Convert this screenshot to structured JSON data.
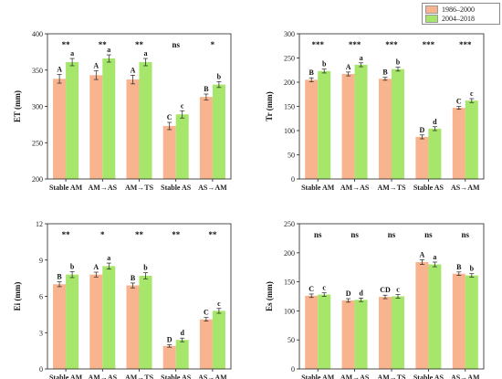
{
  "legend": {
    "items": [
      {
        "label": "1986–2000",
        "color": "#f8b48e"
      },
      {
        "label": "2004–2018",
        "color": "#a6e66a"
      }
    ]
  },
  "chart_data": [
    {
      "type": "bar",
      "title": "",
      "ylabel": "ET (mm)",
      "xlabel": "",
      "ylim": [
        200,
        400
      ],
      "yticks": [
        200,
        250,
        300,
        350,
        400
      ],
      "categories": [
        "Stable AM",
        "AM→AS",
        "AM→TS",
        "Stable AS",
        "AS→AM"
      ],
      "series": [
        {
          "name": "1986–2000",
          "values": [
            338,
            343,
            337,
            273,
            313
          ],
          "errors": [
            6,
            6,
            6,
            5,
            4
          ],
          "letters": [
            "A",
            "A",
            "A",
            "C",
            "B"
          ]
        },
        {
          "name": "2004–2018",
          "values": [
            361,
            366,
            361,
            289,
            330
          ],
          "errors": [
            5,
            5,
            5,
            5,
            4
          ],
          "letters": [
            "a",
            "a",
            "a",
            "c",
            "b"
          ]
        }
      ],
      "significance": [
        "**",
        "**",
        "**",
        "ns",
        "*"
      ]
    },
    {
      "type": "bar",
      "title": "",
      "ylabel": "Tr (mm)",
      "xlabel": "",
      "ylim": [
        0,
        300
      ],
      "yticks": [
        0,
        50,
        100,
        150,
        200,
        250,
        300
      ],
      "categories": [
        "Stable AM",
        "AM→AS",
        "AM→TS",
        "Stable AS",
        "AS→AM"
      ],
      "series": [
        {
          "name": "1986–2000",
          "values": [
            205,
            217,
            207,
            87,
            147
          ],
          "errors": [
            4,
            4,
            3,
            4,
            3
          ],
          "letters": [
            "B",
            "A",
            "B",
            "D",
            "C"
          ]
        },
        {
          "name": "2004–2018",
          "values": [
            223,
            236,
            227,
            104,
            162
          ],
          "errors": [
            4,
            4,
            4,
            4,
            4
          ],
          "letters": [
            "b",
            "a",
            "b",
            "d",
            "c"
          ]
        }
      ],
      "significance": [
        "***",
        "***",
        "***",
        "***",
        "***"
      ]
    },
    {
      "type": "bar",
      "title": "",
      "ylabel": "Ei (mm)",
      "xlabel": "",
      "ylim": [
        0,
        12
      ],
      "yticks": [
        0,
        3,
        6,
        9,
        12
      ],
      "categories": [
        "Stable AM",
        "AM→AS",
        "AM→TS",
        "Stable AS",
        "AS→AM"
      ],
      "series": [
        {
          "name": "1986–2000",
          "values": [
            7.0,
            7.8,
            6.9,
            1.9,
            4.1
          ],
          "errors": [
            0.2,
            0.2,
            0.2,
            0.1,
            0.15
          ],
          "letters": [
            "B",
            "A",
            "B",
            "D",
            "C"
          ]
        },
        {
          "name": "2004–2018",
          "values": [
            7.8,
            8.5,
            7.7,
            2.4,
            4.8
          ],
          "errors": [
            0.25,
            0.25,
            0.25,
            0.15,
            0.2
          ],
          "letters": [
            "b",
            "a",
            "b",
            "d",
            "c"
          ]
        }
      ],
      "significance": [
        "**",
        "*",
        "**",
        "**",
        "**"
      ]
    },
    {
      "type": "bar",
      "title": "",
      "ylabel": "Es (mm)",
      "xlabel": "",
      "ylim": [
        0,
        250
      ],
      "yticks": [
        0,
        50,
        100,
        150,
        200,
        250
      ],
      "categories": [
        "Stable AM",
        "AM→AS",
        "AM→TS",
        "Stable AS",
        "AS→AM"
      ],
      "series": [
        {
          "name": "1986–2000",
          "values": [
            126,
            118,
            124,
            184,
            164
          ],
          "errors": [
            3,
            3,
            3,
            4,
            3
          ],
          "letters": [
            "C",
            "D",
            "CD",
            "A",
            "B"
          ]
        },
        {
          "name": "2004–2018",
          "values": [
            128,
            119,
            125,
            180,
            161
          ],
          "errors": [
            3,
            3,
            3,
            4,
            3
          ],
          "letters": [
            "c",
            "d",
            "c",
            "a",
            "b"
          ]
        }
      ],
      "significance": [
        "ns",
        "ns",
        "ns",
        "ns",
        "ns"
      ]
    }
  ]
}
